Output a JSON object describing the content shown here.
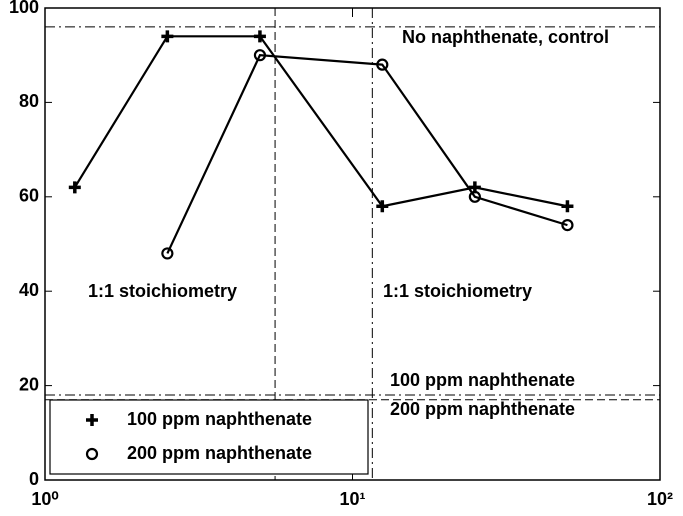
{
  "chart_data": {
    "type": "line",
    "xscale": "log",
    "xlim": [
      1,
      100
    ],
    "ylim": [
      0,
      100
    ],
    "xticks": [
      {
        "value": 1,
        "label": "10⁰"
      },
      {
        "value": 10,
        "label": "10¹"
      },
      {
        "value": 100,
        "label": "10²"
      }
    ],
    "yticks": [
      0,
      20,
      40,
      60,
      80,
      100
    ],
    "grid": false,
    "legend": "lower left",
    "series": [
      {
        "name": "100 ppm naphthenate",
        "color": "#000000",
        "marker": "plus",
        "x": [
          1.25,
          2.5,
          5,
          12.5,
          25,
          50
        ],
        "values": [
          62,
          94,
          94,
          58,
          62,
          58
        ]
      },
      {
        "name": "200 ppm naphthenate",
        "color": "#000000",
        "marker": "circle",
        "x": [
          2.5,
          5,
          12.5,
          25,
          50
        ],
        "values": [
          48,
          90,
          88,
          60,
          54
        ]
      }
    ],
    "hlines": [
      {
        "value": 96,
        "label": "No naphthenate, control",
        "style": "dashdot"
      },
      {
        "value": 18,
        "label": "100 ppm naphthenate",
        "style": "dashdot"
      },
      {
        "value": 17,
        "label": "200 ppm naphthenate",
        "style": "dashed"
      }
    ],
    "vlines": [
      {
        "value": 5.6,
        "style": "dashed"
      },
      {
        "value": 11.6,
        "style": "dashdot"
      }
    ],
    "annotations": [
      "1:1 stoichiometry",
      "1:1 stoichiometry"
    ]
  }
}
